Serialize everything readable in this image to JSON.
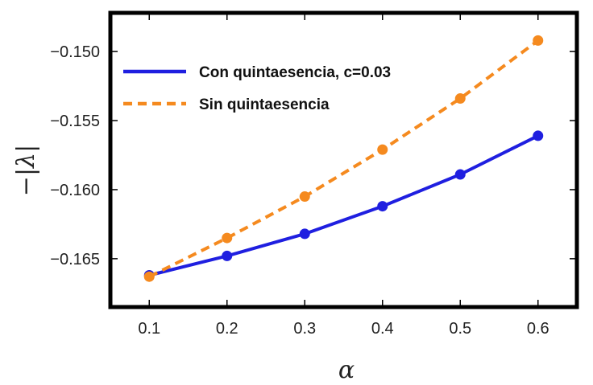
{
  "chart_data": {
    "type": "line",
    "xlabel": "α",
    "ylabel": "−|λ|",
    "xlim": [
      0.05,
      0.65
    ],
    "ylim": [
      -0.1685,
      -0.1472
    ],
    "xticks": [
      0.1,
      0.2,
      0.3,
      0.4,
      0.5,
      0.6
    ],
    "yticks": [
      -0.165,
      -0.16,
      -0.155,
      -0.15
    ],
    "xtick_labels": [
      "0.1",
      "0.2",
      "0.3",
      "0.4",
      "0.5",
      "0.6"
    ],
    "ytick_labels": [
      "−0.165",
      "−0.160",
      "−0.155",
      "−0.150"
    ],
    "x": [
      0.1,
      0.2,
      0.3,
      0.4,
      0.5,
      0.6
    ],
    "series": [
      {
        "name": "Con quintaesencia, c=0.03",
        "values": [
          -0.1662,
          -0.1648,
          -0.1632,
          -0.1612,
          -0.1589,
          -0.1561
        ],
        "color": "#1f1fe0",
        "style": "solid"
      },
      {
        "name": "Sin quintaesencia",
        "values": [
          -0.1663,
          -0.1635,
          -0.1605,
          -0.1571,
          -0.1534,
          -0.1492
        ],
        "color": "#f58a1f",
        "style": "dashed"
      }
    ],
    "legend": "top-left",
    "grid": false
  }
}
